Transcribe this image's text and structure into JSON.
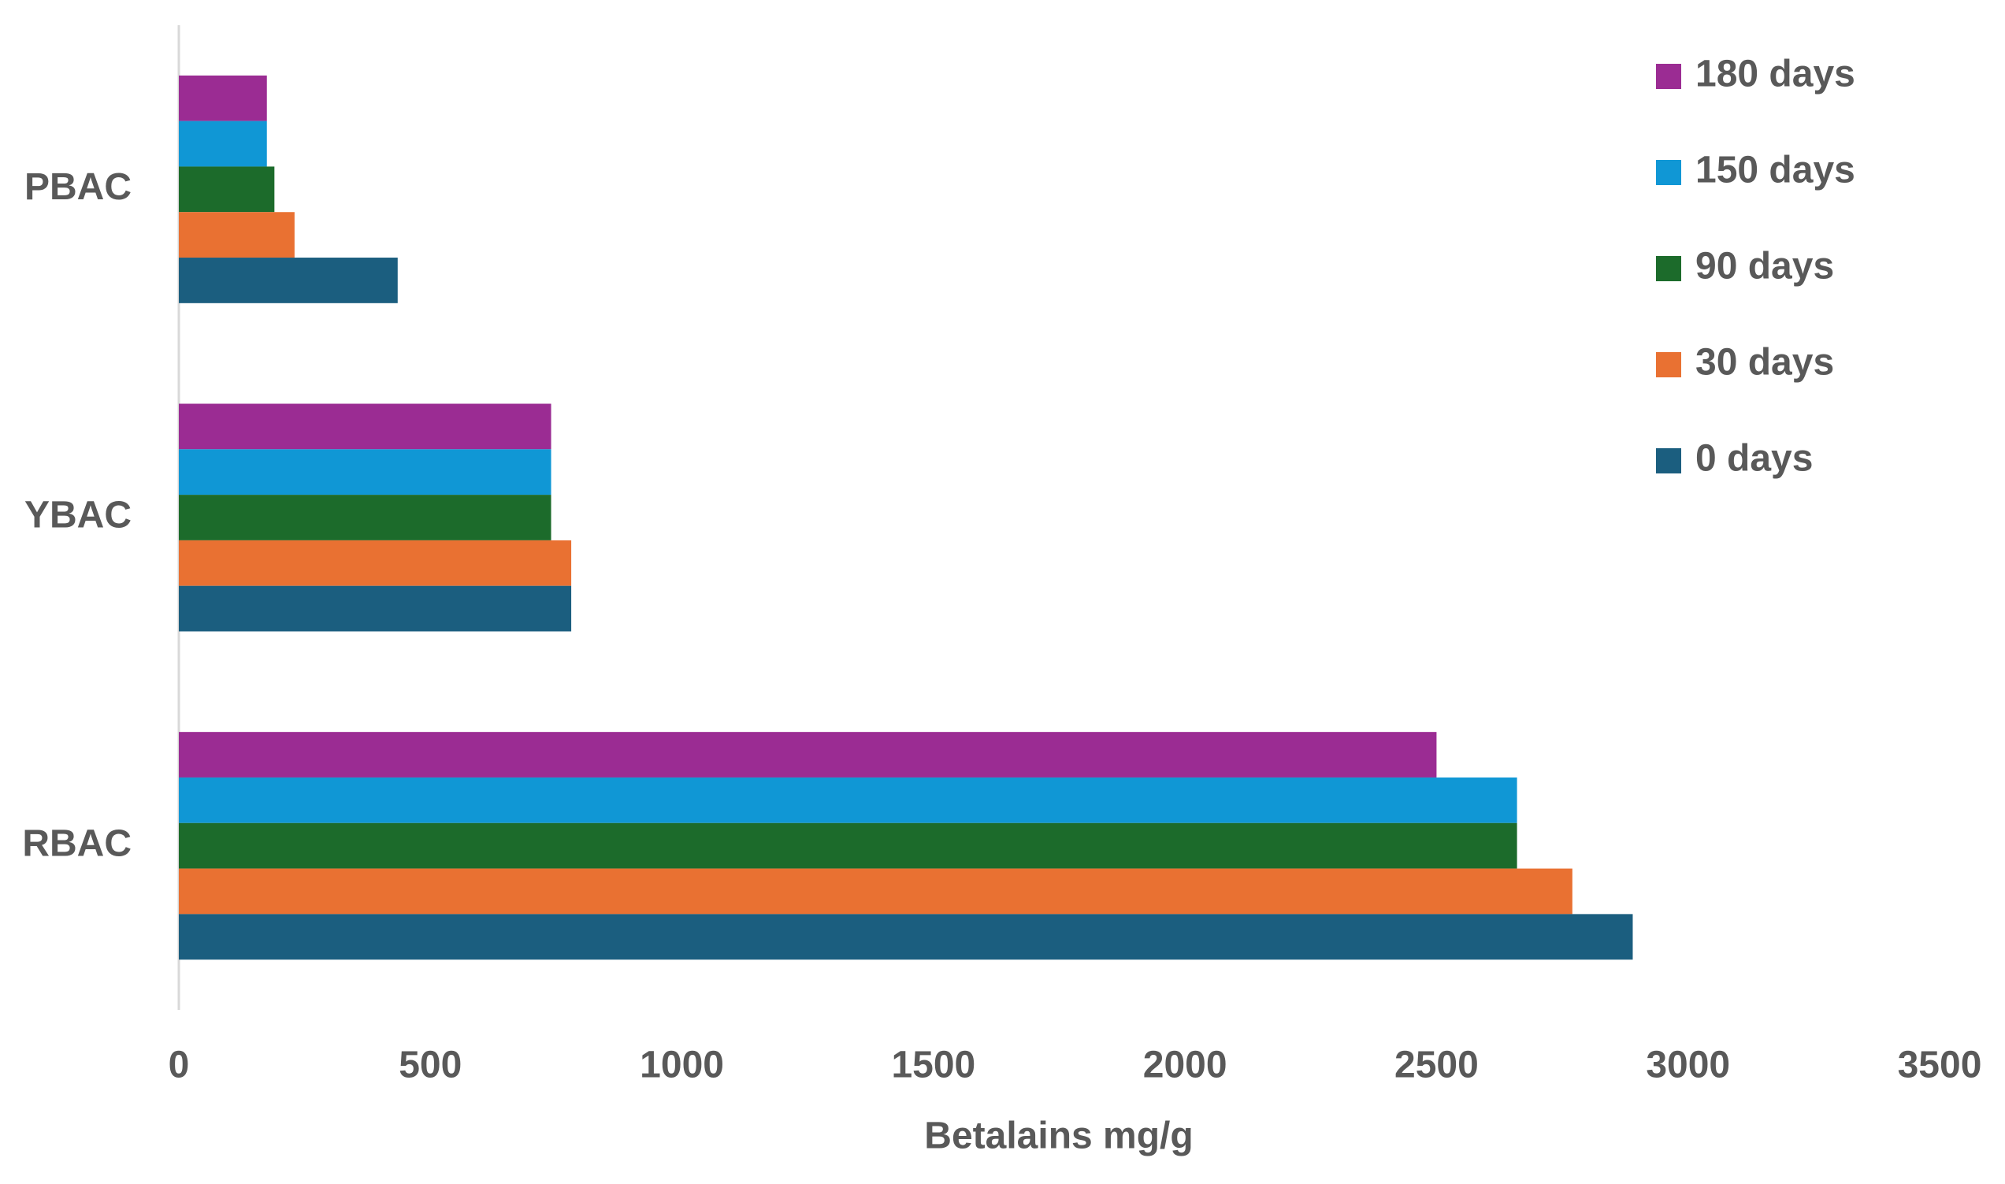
{
  "chart_data": {
    "type": "bar",
    "orientation": "horizontal",
    "x_label": "Betalains mg/g",
    "categories": [
      "PBAC",
      "YBAC",
      "RBAC"
    ],
    "series": [
      {
        "name": "180 days",
        "color": "#9b2c93",
        "values": [
          175,
          740,
          2500
        ]
      },
      {
        "name": "150 days",
        "color": "#1097d5",
        "values": [
          175,
          740,
          2660
        ]
      },
      {
        "name": "90 days",
        "color": "#1c6b2b",
        "values": [
          190,
          740,
          2660
        ]
      },
      {
        "name": "30 days",
        "color": "#e97132",
        "values": [
          230,
          780,
          2770
        ]
      },
      {
        "name": "0 days",
        "color": "#1b5e7f",
        "values": [
          435,
          780,
          2890
        ]
      }
    ],
    "xlim": [
      0,
      3500
    ],
    "xticks": [
      0,
      500,
      1000,
      1500,
      2000,
      2500,
      3000,
      3500
    ],
    "grid": false,
    "legend": "right"
  }
}
